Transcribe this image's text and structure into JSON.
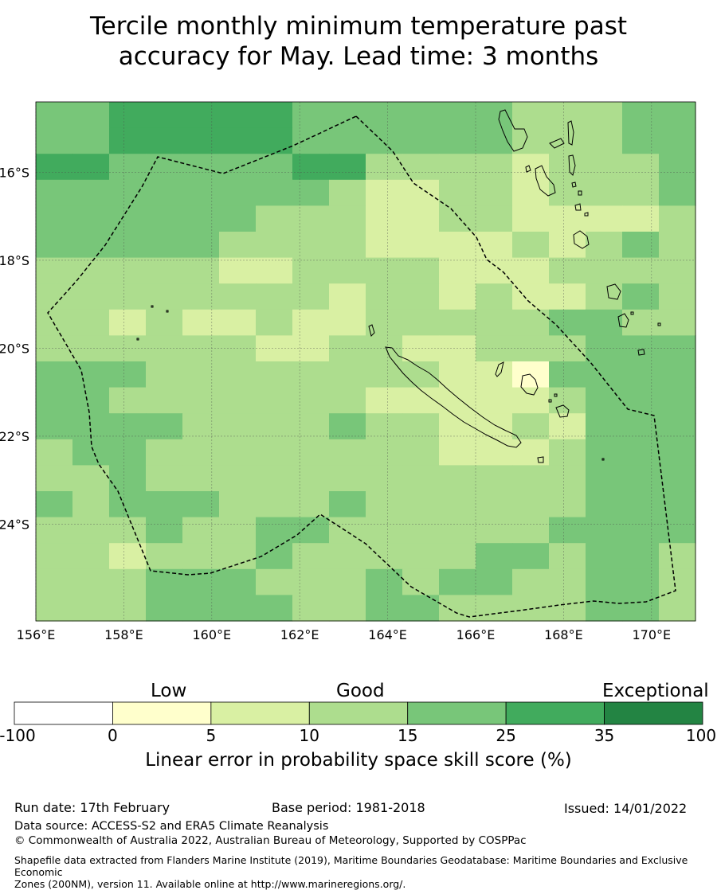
{
  "title_line1": "Tercile monthly minimum temperature past",
  "title_line2": "accuracy for May. Lead time: 3 months",
  "map": {
    "lon_range": [
      156,
      171
    ],
    "lat_range": [
      -26.2,
      -14.4
    ],
    "lon_ticks": [
      "156°E",
      "158°E",
      "160°E",
      "162°E",
      "164°E",
      "166°E",
      "168°E",
      "170°E"
    ],
    "lat_ticks": [
      "16°S",
      "18°S",
      "20°S",
      "22°S",
      "24°S"
    ],
    "grid": true,
    "legend_bins": [
      "<0",
      "0-5",
      "5-10",
      "10-15",
      "15-25",
      "25-35",
      "35-100"
    ],
    "palette": [
      "#ffffff",
      "#ffffcc",
      "#d9f0a3",
      "#addd8e",
      "#78c679",
      "#41ab5d",
      "#238443"
    ],
    "cells": [
      "AFFFDAAAABBBBDAAABBBBBBCCCBBCCCDAAA",
      "CAAAAFFFFFBBBBBDDAEBBBBBBCCCBBCCCDAAA",
      "FBBBBCBBBCCBCCCBDAAFBBBBCCCBBBCCDAAA",
      "ABBBBBCBCBBCCDCBBBBBBBCCCDCBBBCCBAAA",
      "AABBBBBBCBBCCDDBBBCBBBBBBBDAAFFAAFFFA"
    ],
    "cell_values_note": ""
  },
  "colorbar": {
    "sections": [
      "Low",
      "Good",
      "Exceptional"
    ],
    "ticks": [
      "-100",
      "0",
      "5",
      "10",
      "15",
      "25",
      "35",
      "100"
    ],
    "colors": [
      "#ffffff",
      "#ffffcc",
      "#d9f0a3",
      "#addd8e",
      "#78c679",
      "#41ab5d",
      "#238443"
    ],
    "label": "Linear error in probability space skill score (%)"
  },
  "footer": {
    "run_date": "Run date: 17th February",
    "base_period": "Base period: 1981-2018",
    "issued": "Issued: 14/01/2022",
    "data_source": "Data source: ACCESS-S2 and ERA5 Climate Reanalysis",
    "copyright": "© Commonwealth of Australia 2022, Australian Bureau of Meteorology, Supported by COSPPac",
    "shapefile_line1": "Shapefile data extracted from Flanders Marine Institute (2019), Maritime Boundaries Geodatabase: Maritime Boundaries and Exclusive Economic",
    "shapefile_line2": "Zones (200NM), version 11. Available online at http://www.marineregions.org/."
  }
}
